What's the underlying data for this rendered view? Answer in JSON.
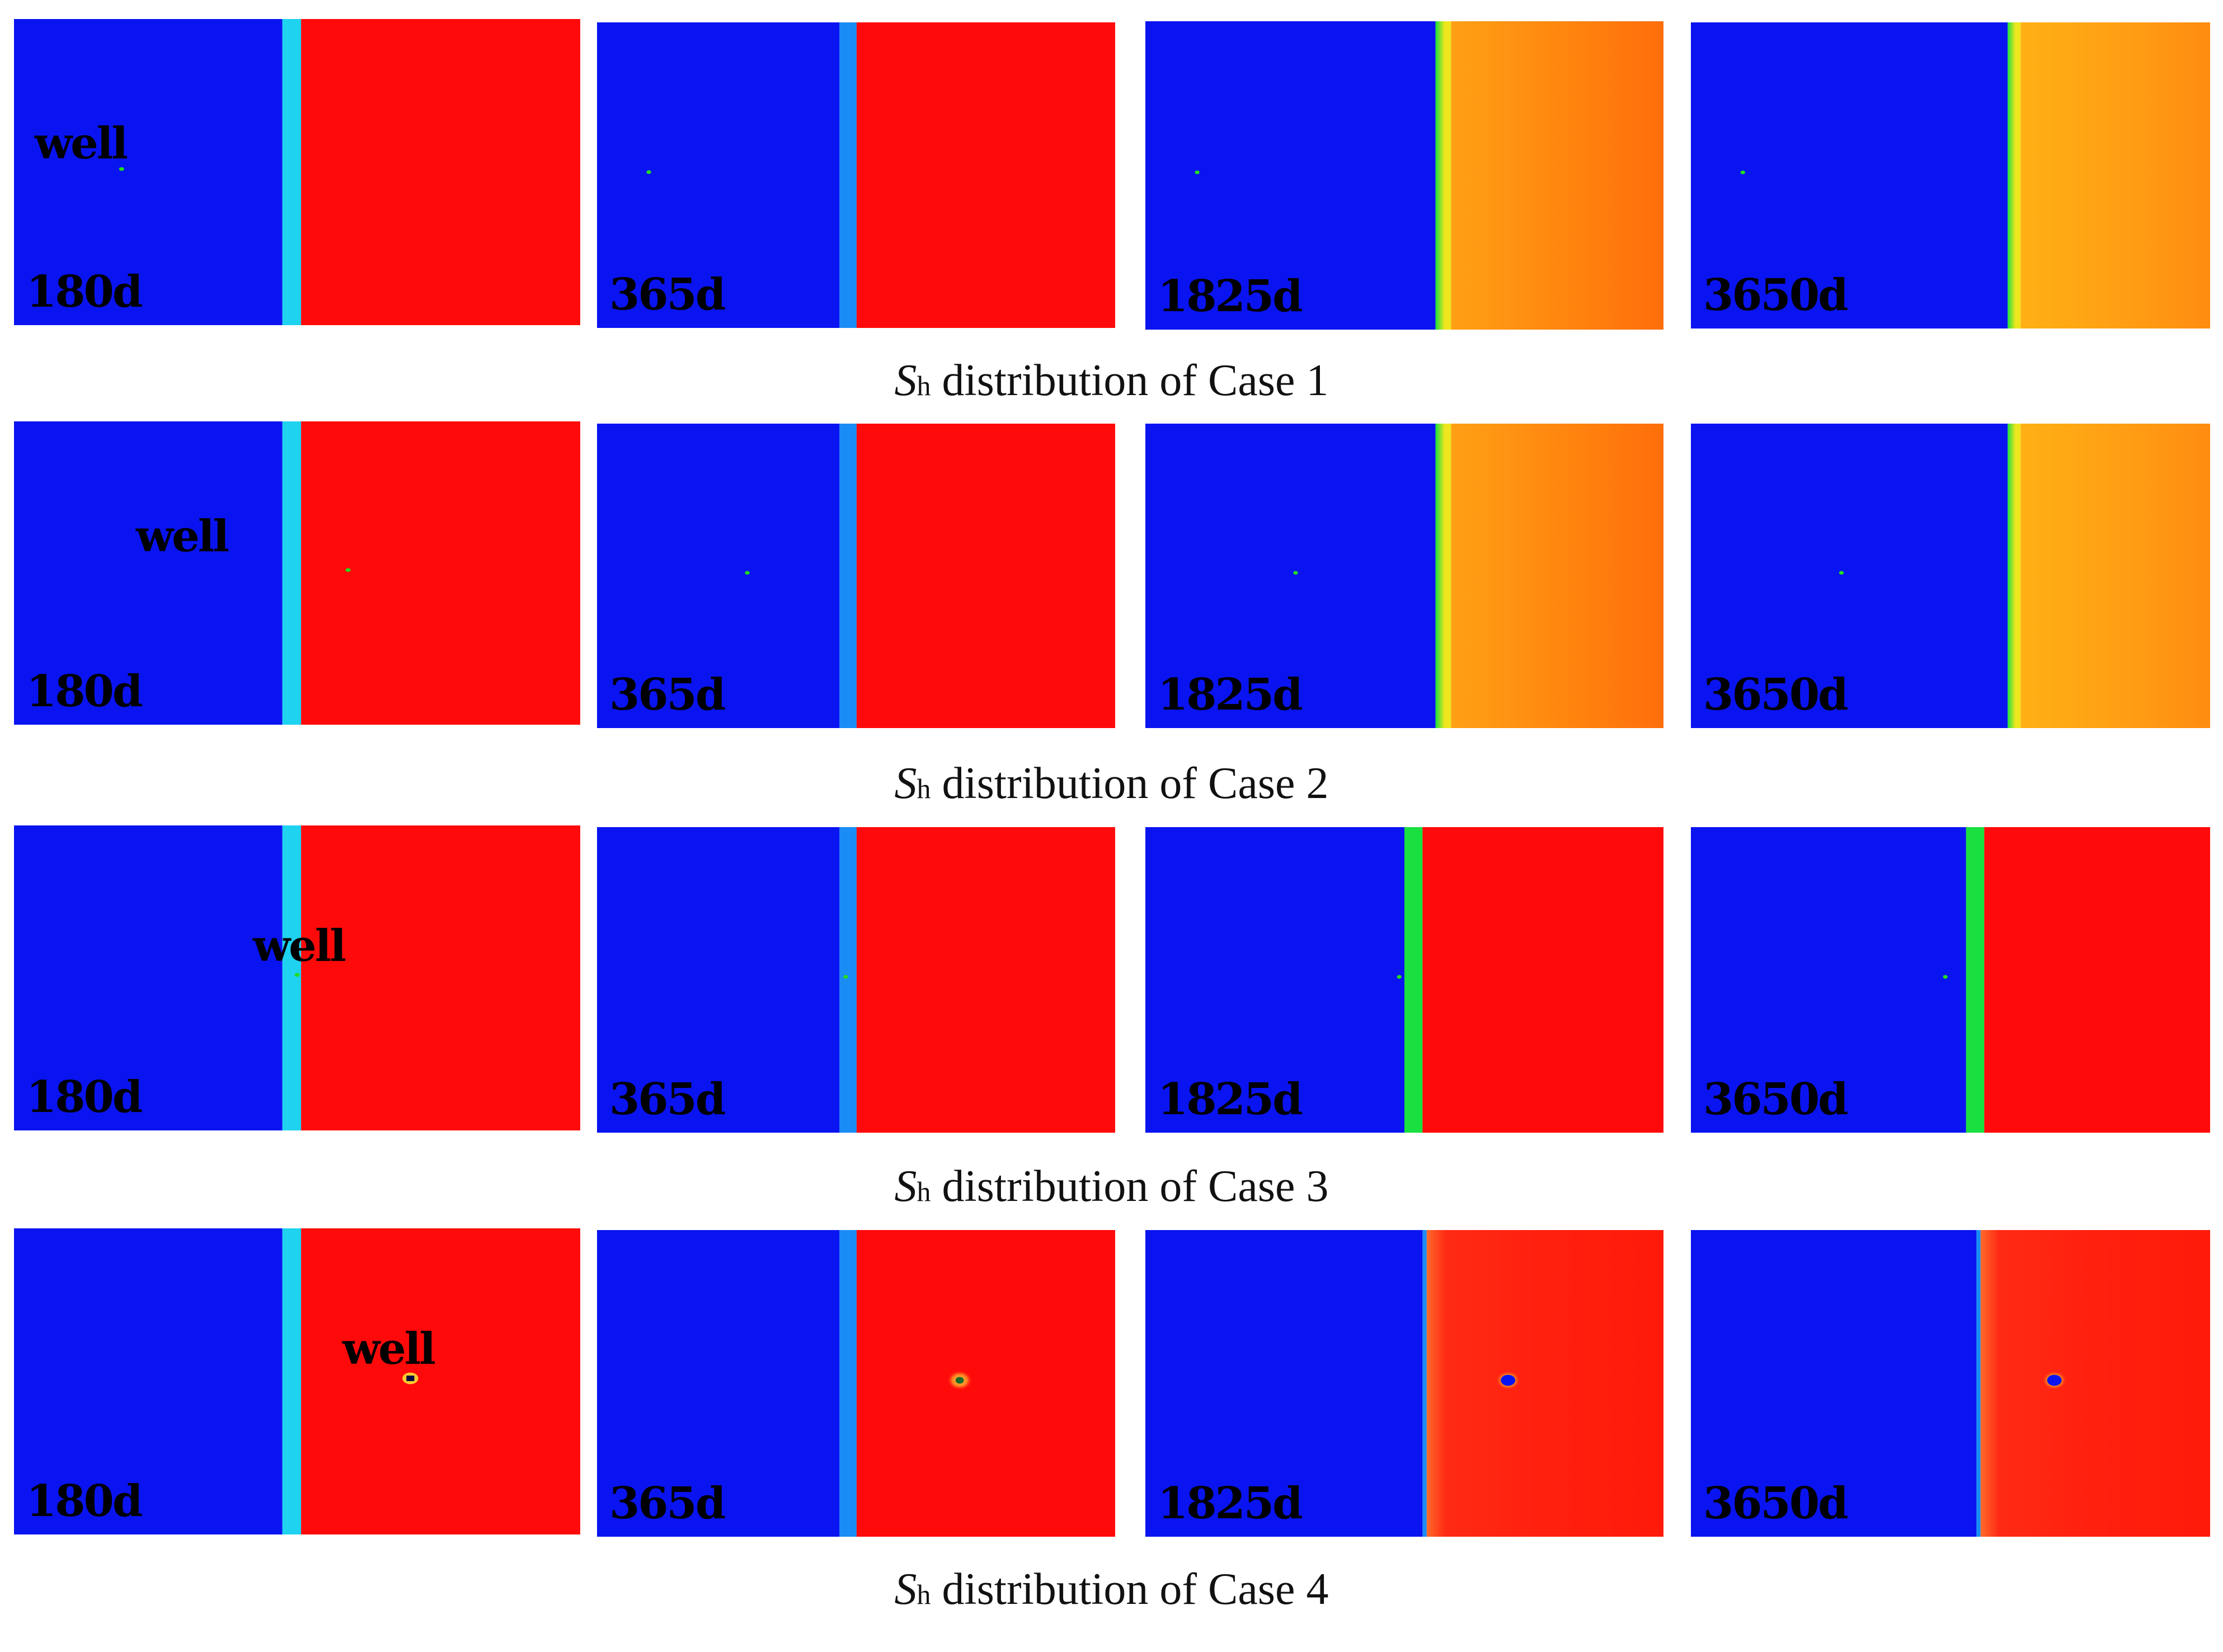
{
  "figure": {
    "symbol": "S",
    "subscript": "h",
    "well_label": "well",
    "cases": [
      {
        "caption": " distribution of Case 1",
        "panels": [
          {
            "day": "180d",
            "variant": "early"
          },
          {
            "day": "365d",
            "variant": "early"
          },
          {
            "day": "1825d",
            "variant": "late-a"
          },
          {
            "day": "3650d",
            "variant": "late-b"
          }
        ]
      },
      {
        "caption": " distribution of Case 2",
        "panels": [
          {
            "day": "180d",
            "variant": "early"
          },
          {
            "day": "365d",
            "variant": "early"
          },
          {
            "day": "1825d",
            "variant": "late-a"
          },
          {
            "day": "3650d",
            "variant": "late-b"
          }
        ]
      },
      {
        "caption": " distribution of Case 3",
        "panels": [
          {
            "day": "180d",
            "variant": "early"
          },
          {
            "day": "365d",
            "variant": "early"
          },
          {
            "day": "1825d",
            "variant": "green"
          },
          {
            "day": "3650d",
            "variant": "green"
          }
        ]
      },
      {
        "caption": " distribution of Case 4",
        "panels": [
          {
            "day": "180d",
            "variant": "early"
          },
          {
            "day": "365d",
            "variant": "early"
          },
          {
            "day": "1825d",
            "variant": "late-c"
          },
          {
            "day": "3650d",
            "variant": "late-c"
          }
        ]
      }
    ]
  },
  "colors": {
    "hydrate_free": "#0a14f0",
    "hydrate_saturated": "#ff0a0a",
    "interface_cyan": "#1ed2f0",
    "interface_lightblue": "#1a8cf5",
    "interface_green": "#19e040",
    "interface_yellow": "#f0e61e",
    "late_orange": "#ffa014",
    "late_deep_orange": "#ff6e0a",
    "well_marker": "#22dd22",
    "text": "#000000"
  }
}
